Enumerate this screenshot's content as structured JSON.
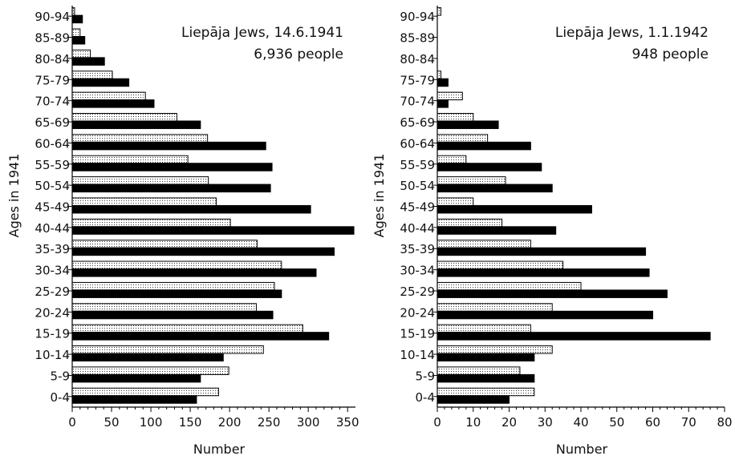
{
  "chart_data": [
    {
      "type": "bar",
      "orientation": "horizontal",
      "categories": [
        "0-4",
        "5-9",
        "10-14",
        "15-19",
        "20-24",
        "25-29",
        "30-34",
        "35-39",
        "40-44",
        "45-49",
        "50-54",
        "55-59",
        "60-64",
        "65-69",
        "70-74",
        "75-79",
        "80-84",
        "85-89",
        "90-94"
      ],
      "series": [
        {
          "values": [
            186,
            199,
            243,
            293,
            234,
            257,
            266,
            235,
            201,
            183,
            173,
            147,
            172,
            133,
            93,
            51,
            23,
            10,
            3
          ],
          "color": "#ffffff",
          "pattern": "dotted"
        },
        {
          "values": [
            158,
            163,
            192,
            326,
            255,
            266,
            310,
            333,
            358,
            303,
            252,
            254,
            246,
            163,
            104,
            72,
            41,
            16,
            13
          ],
          "color": "#000000",
          "pattern": "solid"
        }
      ],
      "xlim": [
        0,
        360
      ],
      "xticks": [
        0,
        50,
        100,
        150,
        200,
        250,
        300,
        350
      ],
      "xlabel": "Number",
      "ylabel": "Ages in 1941",
      "annotation_line1": "Liepāja Jews, 14.6.1941",
      "annotation_line2": "6,936 people"
    },
    {
      "type": "bar",
      "orientation": "horizontal",
      "categories": [
        "0-4",
        "5-9",
        "10-14",
        "15-19",
        "20-24",
        "25-29",
        "30-34",
        "35-39",
        "40-44",
        "45-49",
        "50-54",
        "55-59",
        "60-64",
        "65-69",
        "70-74",
        "75-79",
        "80-84",
        "85-89",
        "90-94"
      ],
      "series": [
        {
          "values": [
            27,
            23,
            32,
            26,
            32,
            40,
            35,
            26,
            18,
            10,
            19,
            8,
            14,
            10,
            7,
            1,
            0,
            0,
            1
          ],
          "color": "#ffffff",
          "pattern": "dotted"
        },
        {
          "values": [
            20,
            27,
            27,
            76,
            60,
            64,
            59,
            58,
            33,
            43,
            32,
            29,
            26,
            17,
            3,
            3,
            0,
            0,
            0
          ],
          "color": "#000000",
          "pattern": "solid"
        }
      ],
      "xlim": [
        0,
        80
      ],
      "xticks": [
        0,
        10,
        20,
        30,
        40,
        50,
        60,
        70,
        80
      ],
      "xlabel": "Number",
      "ylabel": "Ages in 1941",
      "annotation_line1": "Liepāja Jews, 1.1.1942",
      "annotation_line2": "948 people"
    }
  ]
}
